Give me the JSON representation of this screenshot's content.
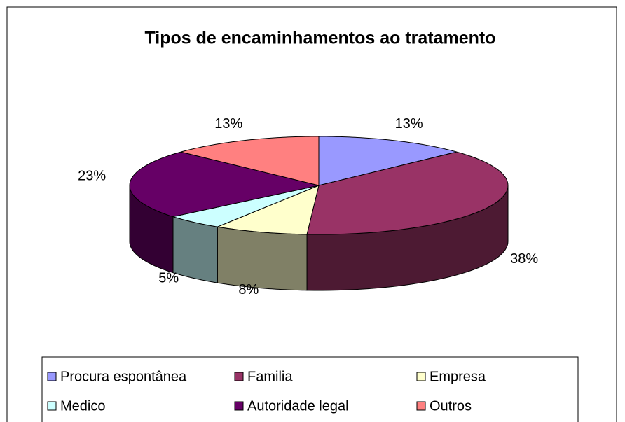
{
  "chart_data": {
    "type": "pie3d",
    "title": "Tipos de encaminhamentos ao tratamento",
    "categories": [
      "Procura espontânea",
      "Familia",
      "Empresa",
      "Medico",
      "Autoridade legal",
      "Outros"
    ],
    "values": [
      13,
      38,
      8,
      5,
      23,
      13
    ],
    "value_labels": [
      "13%",
      "38%",
      "8%",
      "5%",
      "23%",
      "13%"
    ],
    "colors": [
      "#9999ff",
      "#993366",
      "#ffffcc",
      "#ccffff",
      "#660066",
      "#ff8080"
    ],
    "legend": "bottom"
  }
}
